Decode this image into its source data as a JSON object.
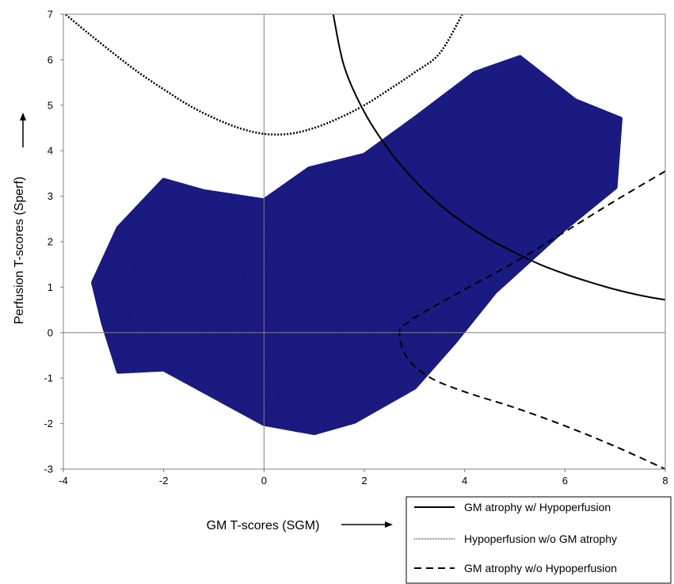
{
  "chart_data": {
    "type": "scatter",
    "title": "",
    "xlabel": "GM T-scores (SGM)",
    "ylabel": "Perfusion T-scores (Sperf)",
    "xlim": [
      -4,
      8
    ],
    "ylim": [
      -3,
      7
    ],
    "x_ticks": [
      "-4",
      "-2",
      "0",
      "2",
      "4",
      "6",
      "8"
    ],
    "y_ticks": [
      "-3",
      "-2",
      "-1",
      "0",
      "1",
      "2",
      "3",
      "4",
      "5",
      "6",
      "7"
    ],
    "grid": false,
    "reference_lines": [
      "x=0",
      "y=0"
    ],
    "marker_color": "#1a1a80",
    "scatter_point_count_approx": 15000,
    "scatter_cluster_hull": [
      [
        -3.4,
        1.1
      ],
      [
        -2.9,
        2.3
      ],
      [
        -2.0,
        3.35
      ],
      [
        -1.2,
        3.1
      ],
      [
        0.0,
        2.9
      ],
      [
        0.9,
        3.6
      ],
      [
        2.0,
        3.9
      ],
      [
        3.0,
        4.7
      ],
      [
        4.2,
        5.7
      ],
      [
        5.1,
        6.05
      ],
      [
        6.2,
        5.1
      ],
      [
        7.1,
        4.7
      ],
      [
        7.0,
        3.2
      ],
      [
        6.0,
        2.3
      ],
      [
        4.6,
        0.9
      ],
      [
        3.8,
        -0.2
      ],
      [
        3.0,
        -1.2
      ],
      [
        1.8,
        -1.95
      ],
      [
        1.0,
        -2.2
      ],
      [
        0.0,
        -2.0
      ],
      [
        -1.0,
        -1.4
      ],
      [
        -2.0,
        -0.8
      ],
      [
        -2.9,
        -0.85
      ],
      [
        -3.2,
        0.2
      ]
    ],
    "series": [
      {
        "name": "GM atrophy w/ Hypoperfusion",
        "style": "solid",
        "points": [
          [
            1.38,
            7.0
          ],
          [
            1.6,
            5.85
          ],
          [
            2.0,
            4.85
          ],
          [
            2.5,
            4.0
          ],
          [
            3.0,
            3.35
          ],
          [
            3.5,
            2.82
          ],
          [
            4.0,
            2.4
          ],
          [
            4.5,
            2.05
          ],
          [
            5.0,
            1.76
          ],
          [
            5.5,
            1.5
          ],
          [
            6.0,
            1.29
          ],
          [
            6.5,
            1.11
          ],
          [
            7.0,
            0.95
          ],
          [
            7.5,
            0.82
          ],
          [
            8.0,
            0.72
          ]
        ]
      },
      {
        "name": "Hypoperfusion w/o GM atrophy",
        "style": "dotted",
        "points": [
          [
            -3.95,
            6.99
          ],
          [
            -3.5,
            6.58
          ],
          [
            -3.0,
            6.14
          ],
          [
            -2.5,
            5.72
          ],
          [
            -2.0,
            5.35
          ],
          [
            -1.5,
            5.0
          ],
          [
            -1.0,
            4.72
          ],
          [
            -0.5,
            4.5
          ],
          [
            0.0,
            4.37
          ],
          [
            0.5,
            4.37
          ],
          [
            1.0,
            4.5
          ],
          [
            1.5,
            4.72
          ],
          [
            2.0,
            5.0
          ],
          [
            2.5,
            5.35
          ],
          [
            3.0,
            5.72
          ],
          [
            3.5,
            6.14
          ],
          [
            3.95,
            6.99
          ]
        ]
      },
      {
        "name": "GM atrophy w/o Hypoperfusion",
        "style": "dashed",
        "points": [
          [
            8.0,
            3.55
          ],
          [
            7.0,
            2.9
          ],
          [
            6.0,
            2.22
          ],
          [
            5.0,
            1.55
          ],
          [
            4.0,
            0.95
          ],
          [
            3.3,
            0.52
          ],
          [
            2.9,
            0.25
          ],
          [
            2.7,
            0.0
          ],
          [
            2.85,
            -0.55
          ],
          [
            3.3,
            -0.98
          ],
          [
            4.0,
            -1.3
          ],
          [
            5.0,
            -1.65
          ],
          [
            6.0,
            -2.05
          ],
          [
            7.0,
            -2.5
          ],
          [
            8.0,
            -3.0
          ]
        ]
      }
    ],
    "legend": {
      "placement": "bottom-right",
      "entries": [
        {
          "label": "GM atrophy w/ Hypoperfusion",
          "style": "solid"
        },
        {
          "label": "Hypoperfusion w/o GM atrophy",
          "style": "dotted"
        },
        {
          "label": "GM atrophy w/o Hypoperfusion",
          "style": "dashed"
        }
      ]
    }
  }
}
